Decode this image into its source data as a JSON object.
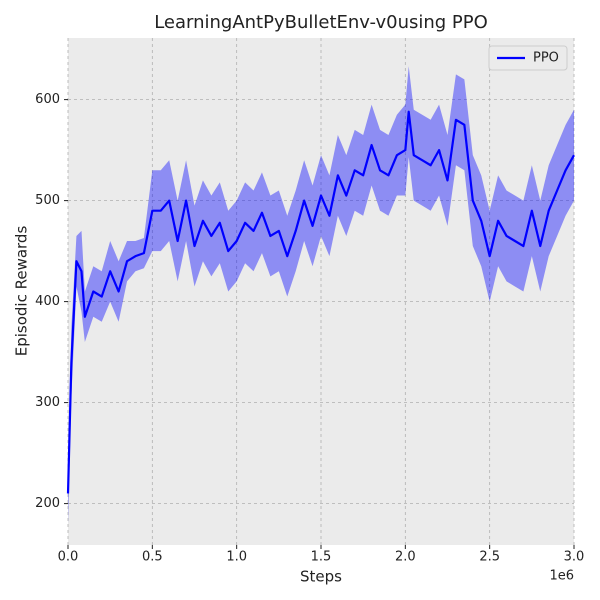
{
  "chart_data": {
    "type": "line",
    "title": "LearningAntPyBulletEnv-v0using PPO",
    "x_label": "Steps",
    "y_label": "Episodic Rewards",
    "x_offset_label": "1e6",
    "xlim": [
      0,
      3.0
    ],
    "ylim": [
      159,
      661
    ],
    "xticks": [
      {
        "value": 0,
        "label": "0.0"
      },
      0.5,
      {
        "value": 1,
        "label": "1.0"
      },
      1.5,
      {
        "value": 2,
        "label": "2.0"
      },
      2.5,
      {
        "value": 3,
        "label": "3.0"
      }
    ],
    "yticks": [
      200,
      300,
      400,
      500,
      600
    ],
    "grid": true,
    "legend": "upper right",
    "x": [
      0,
      0.02,
      0.05,
      0.08,
      0.1,
      0.15,
      0.2,
      0.25,
      0.3,
      0.35,
      0.4,
      0.45,
      0.5,
      0.55,
      0.6,
      0.65,
      0.7,
      0.75,
      0.8,
      0.85,
      0.9,
      0.95,
      1.0,
      1.05,
      1.1,
      1.15,
      1.2,
      1.25,
      1.3,
      1.35,
      1.4,
      1.45,
      1.5,
      1.55,
      1.6,
      1.65,
      1.7,
      1.75,
      1.8,
      1.85,
      1.9,
      1.95,
      2.0,
      2.02,
      2.05,
      2.1,
      2.15,
      2.2,
      2.25,
      2.3,
      2.35,
      2.4,
      2.45,
      2.5,
      2.55,
      2.6,
      2.65,
      2.7,
      2.75,
      2.8,
      2.85,
      2.9,
      2.95,
      3.0
    ],
    "series": [
      {
        "name": "PPO",
        "color": "#0000ff",
        "band_color": "#0000ff",
        "values": [
          210,
          340,
          440,
          430,
          385,
          410,
          405,
          430,
          410,
          440,
          445,
          448,
          490,
          490,
          500,
          460,
          500,
          455,
          480,
          465,
          478,
          450,
          460,
          478,
          470,
          488,
          465,
          470,
          445,
          470,
          500,
          475,
          505,
          485,
          525,
          505,
          530,
          525,
          555,
          530,
          525,
          545,
          550,
          588,
          545,
          540,
          535,
          550,
          520,
          580,
          575,
          500,
          480,
          445,
          480,
          465,
          460,
          455,
          490,
          455,
          490,
          510,
          530,
          545
        ],
        "lower": [
          180,
          305,
          415,
          390,
          360,
          385,
          380,
          400,
          380,
          420,
          430,
          433,
          450,
          450,
          460,
          420,
          460,
          415,
          440,
          425,
          438,
          410,
          420,
          438,
          430,
          448,
          425,
          430,
          405,
          430,
          460,
          435,
          465,
          445,
          485,
          465,
          490,
          485,
          515,
          490,
          485,
          505,
          505,
          543,
          500,
          495,
          490,
          505,
          475,
          535,
          530,
          455,
          435,
          400,
          435,
          420,
          415,
          410,
          445,
          410,
          445,
          465,
          485,
          500
        ],
        "upper": [
          240,
          375,
          465,
          470,
          410,
          435,
          430,
          460,
          440,
          460,
          460,
          463,
          530,
          530,
          540,
          500,
          540,
          495,
          520,
          505,
          518,
          490,
          500,
          518,
          510,
          528,
          505,
          510,
          485,
          510,
          540,
          515,
          545,
          525,
          565,
          545,
          570,
          565,
          595,
          570,
          565,
          585,
          595,
          633,
          590,
          585,
          580,
          595,
          565,
          625,
          620,
          545,
          525,
          490,
          525,
          510,
          505,
          500,
          535,
          500,
          535,
          555,
          575,
          590
        ]
      }
    ]
  }
}
